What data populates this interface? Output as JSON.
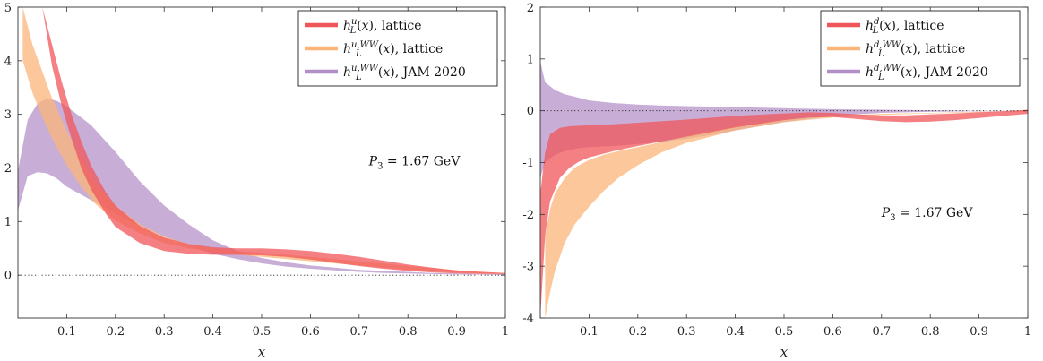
{
  "chart_data": [
    {
      "type": "area",
      "xlabel": "x",
      "xlim": [
        0,
        1
      ],
      "ylim": [
        -0.8,
        5
      ],
      "x_ticks": [
        "0.1",
        "0.2",
        "0.3",
        "0.4",
        "0.5",
        "0.6",
        "0.7",
        "0.8",
        "0.9",
        "1"
      ],
      "x_tick_values": [
        0.1,
        0.2,
        0.3,
        0.4,
        0.5,
        0.6,
        0.7,
        0.8,
        0.9,
        1.0
      ],
      "y_ticks": [
        "0",
        "1",
        "2",
        "3",
        "4",
        "5"
      ],
      "y_tick_values": [
        0,
        1,
        2,
        3,
        4,
        5
      ],
      "annotation": "P_3 = 1.67 GeV",
      "annotation_pos": [
        0.72,
        2.05
      ],
      "legend": {
        "position": "top-right"
      },
      "series": [
        {
          "name": "h_L^{u,WW}(x), JAM 2020",
          "color": "#b38fc7",
          "x": [
            0.0,
            0.02,
            0.04,
            0.06,
            0.08,
            0.1,
            0.15,
            0.2,
            0.25,
            0.3,
            0.35,
            0.4,
            0.45,
            0.5,
            0.55,
            0.6,
            0.65,
            0.7,
            0.75,
            0.8,
            0.85,
            0.9,
            0.95,
            1.0
          ],
          "upper": [
            1.95,
            2.9,
            3.2,
            3.3,
            3.25,
            3.15,
            2.8,
            2.3,
            1.75,
            1.3,
            0.95,
            0.65,
            0.45,
            0.32,
            0.24,
            0.18,
            0.14,
            0.1,
            0.08,
            0.06,
            0.04,
            0.03,
            0.02,
            0.02
          ],
          "lower": [
            1.2,
            1.85,
            1.92,
            1.9,
            1.8,
            1.65,
            1.4,
            1.15,
            0.92,
            0.72,
            0.55,
            0.4,
            0.3,
            0.22,
            0.16,
            0.12,
            0.09,
            0.06,
            0.04,
            0.03,
            0.02,
            0.01,
            0.01,
            0.0
          ]
        },
        {
          "name": "h_L^{u,WW}(x), lattice",
          "color": "#fbb47a",
          "x": [
            0.01,
            0.03,
            0.05,
            0.07,
            0.1,
            0.13,
            0.16,
            0.2,
            0.25,
            0.3,
            0.35,
            0.4,
            0.45,
            0.5,
            0.6,
            0.7,
            0.8,
            0.9,
            1.0
          ],
          "upper": [
            5.0,
            4.3,
            3.8,
            3.3,
            2.7,
            2.15,
            1.7,
            1.3,
            0.95,
            0.72,
            0.58,
            0.5,
            0.45,
            0.42,
            0.34,
            0.26,
            0.17,
            0.09,
            0.04
          ],
          "lower": [
            4.0,
            3.4,
            2.95,
            2.55,
            2.05,
            1.65,
            1.32,
            1.02,
            0.78,
            0.6,
            0.5,
            0.44,
            0.38,
            0.34,
            0.26,
            0.18,
            0.1,
            0.05,
            0.02
          ]
        },
        {
          "name": "h_L^u(x), lattice",
          "color": "#f0555a",
          "x": [
            0.05,
            0.07,
            0.09,
            0.11,
            0.13,
            0.15,
            0.18,
            0.2,
            0.25,
            0.3,
            0.35,
            0.4,
            0.45,
            0.5,
            0.55,
            0.6,
            0.65,
            0.7,
            0.75,
            0.8,
            0.85,
            0.9,
            0.95,
            1.0
          ],
          "upper": [
            5.0,
            4.3,
            3.6,
            3.0,
            2.5,
            2.05,
            1.55,
            1.3,
            0.92,
            0.7,
            0.58,
            0.52,
            0.5,
            0.5,
            0.48,
            0.45,
            0.4,
            0.34,
            0.27,
            0.2,
            0.14,
            0.09,
            0.06,
            0.04
          ],
          "lower": [
            5.0,
            3.9,
            3.15,
            2.55,
            2.0,
            1.6,
            1.15,
            0.9,
            0.6,
            0.45,
            0.4,
            0.38,
            0.38,
            0.37,
            0.34,
            0.29,
            0.23,
            0.17,
            0.12,
            0.08,
            0.05,
            0.03,
            0.02,
            0.02
          ]
        }
      ]
    },
    {
      "type": "area",
      "xlabel": "x",
      "xlim": [
        0,
        1
      ],
      "ylim": [
        -4,
        2
      ],
      "x_ticks": [
        "0.1",
        "0.2",
        "0.3",
        "0.4",
        "0.5",
        "0.6",
        "0.7",
        "0.8",
        "0.9",
        "1"
      ],
      "x_tick_values": [
        0.1,
        0.2,
        0.3,
        0.4,
        0.5,
        0.6,
        0.7,
        0.8,
        0.9,
        1.0
      ],
      "y_ticks": [
        "2",
        "1",
        "0",
        "-1",
        "-2",
        "-3",
        "-4"
      ],
      "y_tick_values": [
        2,
        1,
        0,
        -1,
        -2,
        -3,
        -4
      ],
      "annotation": "P_3 = 1.67 GeV",
      "annotation_pos": [
        0.7,
        -2.05
      ],
      "legend": {
        "position": "top-right"
      },
      "series": [
        {
          "name": "h_L^{d,WW}(x), JAM 2020",
          "color": "#b38fc7",
          "x": [
            0.0,
            0.01,
            0.03,
            0.05,
            0.08,
            0.1,
            0.15,
            0.2,
            0.25,
            0.3,
            0.35,
            0.4,
            0.5,
            0.6,
            0.7,
            0.8,
            0.9,
            1.0
          ],
          "upper": [
            0.95,
            0.55,
            0.4,
            0.32,
            0.25,
            0.2,
            0.15,
            0.12,
            0.1,
            0.09,
            0.08,
            0.07,
            0.05,
            0.03,
            0.02,
            0.01,
            0.0,
            0.0
          ],
          "lower": [
            -1.3,
            -1.0,
            -0.85,
            -0.78,
            -0.72,
            -0.7,
            -0.68,
            -0.64,
            -0.6,
            -0.54,
            -0.47,
            -0.38,
            -0.22,
            -0.1,
            -0.04,
            -0.02,
            -0.01,
            -0.01
          ]
        },
        {
          "name": "h_L^{d,WW}(x), lattice",
          "color": "#fbb47a",
          "x": [
            0.01,
            0.02,
            0.03,
            0.05,
            0.07,
            0.1,
            0.13,
            0.16,
            0.2,
            0.25,
            0.3,
            0.4,
            0.5,
            0.6,
            0.7,
            0.8,
            0.9,
            1.0
          ],
          "upper": [
            -2.4,
            -1.9,
            -1.6,
            -1.3,
            -1.1,
            -0.95,
            -0.85,
            -0.78,
            -0.7,
            -0.6,
            -0.48,
            -0.3,
            -0.17,
            -0.1,
            -0.06,
            -0.04,
            -0.02,
            -0.01
          ],
          "lower": [
            -4.0,
            -3.5,
            -3.1,
            -2.55,
            -2.2,
            -1.85,
            -1.55,
            -1.3,
            -1.05,
            -0.8,
            -0.62,
            -0.38,
            -0.22,
            -0.13,
            -0.08,
            -0.05,
            -0.03,
            -0.02
          ]
        },
        {
          "name": "h_L^d(x), lattice",
          "color": "#f0555a",
          "x": [
            0.0,
            0.01,
            0.02,
            0.04,
            0.06,
            0.08,
            0.1,
            0.15,
            0.2,
            0.3,
            0.4,
            0.5,
            0.55,
            0.6,
            0.65,
            0.7,
            0.75,
            0.8,
            0.85,
            0.9,
            0.95,
            1.0
          ],
          "upper": [
            -1.6,
            -0.8,
            -0.45,
            -0.33,
            -0.3,
            -0.29,
            -0.28,
            -0.26,
            -0.23,
            -0.17,
            -0.1,
            -0.05,
            -0.03,
            -0.04,
            -0.07,
            -0.09,
            -0.09,
            -0.07,
            -0.05,
            -0.03,
            -0.01,
            0.02
          ],
          "lower": [
            -4.0,
            -2.4,
            -1.75,
            -1.3,
            -1.1,
            -0.98,
            -0.9,
            -0.78,
            -0.68,
            -0.5,
            -0.32,
            -0.18,
            -0.13,
            -0.12,
            -0.16,
            -0.2,
            -0.22,
            -0.21,
            -0.18,
            -0.14,
            -0.1,
            -0.06
          ]
        }
      ]
    }
  ]
}
